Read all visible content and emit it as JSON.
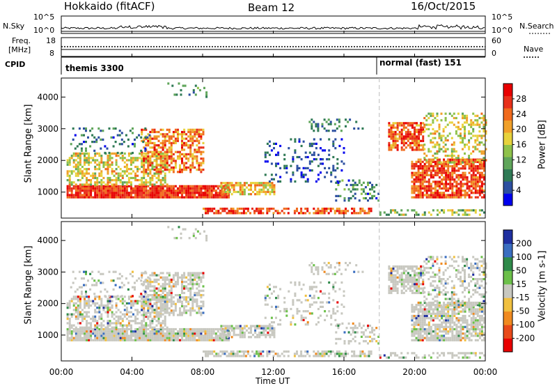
{
  "header": {
    "station": "Hokkaido (fitACF)",
    "beam": "Beam 12",
    "date": "16/Oct/2015"
  },
  "top_panels": {
    "nsky_label": "N.Sky",
    "nsky_left_ticks": [
      "10^5",
      "10^0"
    ],
    "nsky_right_ticks": [
      "10^5",
      "10^0"
    ],
    "nsearch_label": "N.Search",
    "freq_label_1": "Freq.",
    "freq_label_2": "[MHz]",
    "freq_left_ticks": [
      "18",
      "8"
    ],
    "freq_right_ticks": [
      "60",
      "0"
    ],
    "nave_label": "Nave",
    "cpid_label": "CPID",
    "cpid_1": "themis 3300",
    "cpid_2": "normal (fast) 151"
  },
  "chart_data": [
    {
      "type": "heatmap",
      "title": "",
      "xlabel": "Time UT",
      "ylabel": "Slant Range [km]",
      "x_ticks": [
        "00:00",
        "04:00",
        "08:00",
        "12:00",
        "16:00",
        "20:00",
        "00:00"
      ],
      "xlim": [
        0,
        24
      ],
      "y_ticks": [
        1000,
        2000,
        3000,
        4000
      ],
      "ylim": [
        180,
        4600
      ],
      "colorbar_label": "Power [dB]",
      "colorbar_ticks": [
        4,
        8,
        12,
        16,
        20,
        24,
        28
      ],
      "colors": [
        "#0000ee",
        "#2c4fa0",
        "#2f7a55",
        "#5fa55a",
        "#8fc24a",
        "#e7d23c",
        "#f0a02a",
        "#f06a1c",
        "#e8301a",
        "#e80000"
      ]
    },
    {
      "type": "heatmap",
      "title": "",
      "xlabel": "Time UT",
      "ylabel": "Slant Range [km]",
      "x_ticks": [
        "00:00",
        "04:00",
        "08:00",
        "12:00",
        "16:00",
        "20:00",
        "00:00"
      ],
      "xlim": [
        0,
        24
      ],
      "y_ticks": [
        1000,
        2000,
        3000,
        4000
      ],
      "ylim": [
        180,
        4600
      ],
      "colorbar_label": "Velocity [m s-1]",
      "colorbar_ticks": [
        200,
        100,
        50,
        15,
        -15,
        -50,
        -100,
        -200
      ],
      "colors": [
        "#1f2fa0",
        "#3a6ec0",
        "#2f8a4a",
        "#6cc04a",
        "#c8c8c0",
        "#f0c040",
        "#f08a20",
        "#e84a1a",
        "#e80000"
      ]
    }
  ]
}
